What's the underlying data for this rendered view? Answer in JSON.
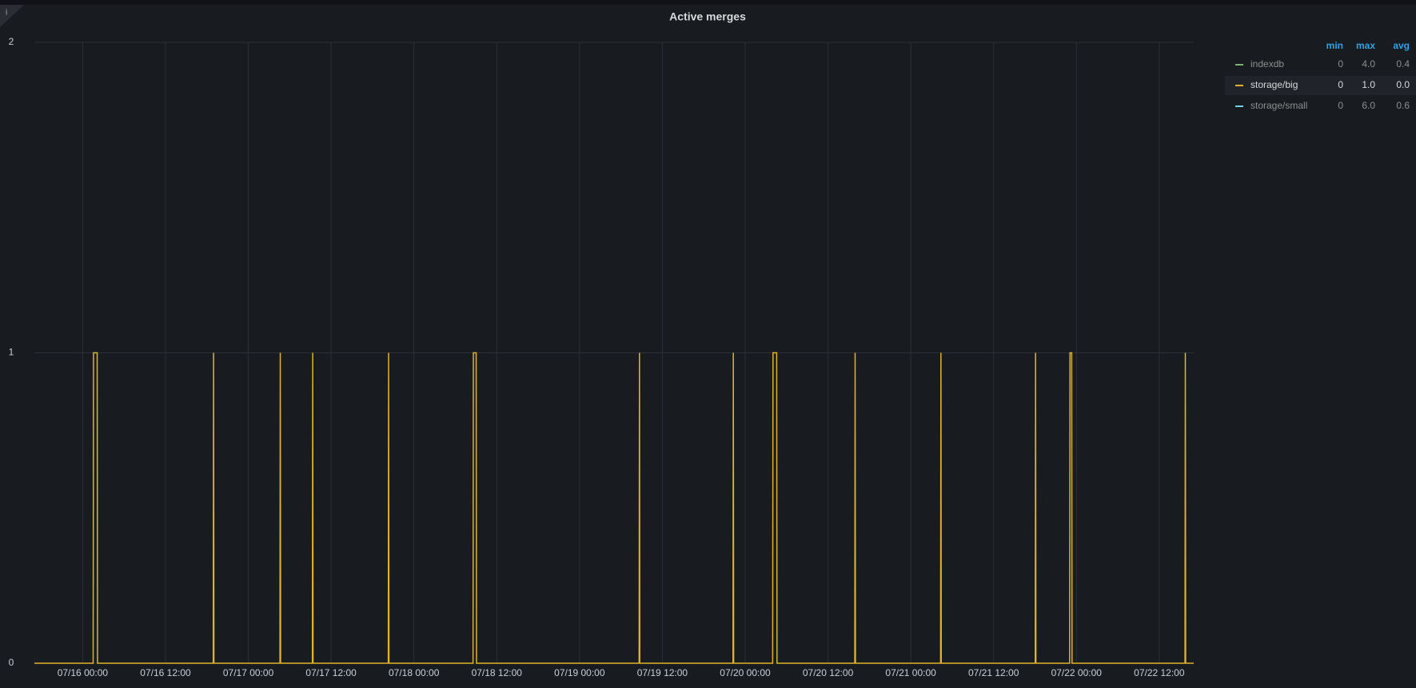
{
  "chart_data": {
    "type": "line",
    "title": "Active merges",
    "info_icon": "i",
    "ylim": [
      0,
      2
    ],
    "yticks": [
      0,
      1,
      2
    ],
    "xlim": [
      "07/15 17:00",
      "07/22 17:00"
    ],
    "xticks": [
      "07/16 00:00",
      "07/16 12:00",
      "07/17 00:00",
      "07/17 12:00",
      "07/18 00:00",
      "07/18 12:00",
      "07/19 00:00",
      "07/19 12:00",
      "07/20 00:00",
      "07/20 12:00",
      "07/21 00:00",
      "07/21 12:00",
      "07/22 00:00",
      "07/22 12:00"
    ],
    "grid": true,
    "legend_columns": [
      "min",
      "max",
      "avg"
    ],
    "series": [
      {
        "name": "indexdb",
        "color": "#7eb26d",
        "visible": false,
        "min": "0",
        "max": "4.0",
        "avg": "0.4"
      },
      {
        "name": "storage/big",
        "color": "#e0b32a",
        "visible": true,
        "min": "0",
        "max": "1.0",
        "avg": "0.0",
        "x": [
          "07/15 17:00",
          "07/16 01:31",
          "07/16 01:34",
          "07/16 02:06",
          "07/16 02:09",
          "07/16 18:55",
          "07/16 18:58",
          "07/16 19:01",
          "07/17 04:35",
          "07/17 04:38",
          "07/17 04:41",
          "07/17 09:17",
          "07/17 09:20",
          "07/17 09:23",
          "07/17 20:17",
          "07/17 20:20",
          "07/17 20:23",
          "07/18 08:34",
          "07/18 08:37",
          "07/18 09:01",
          "07/18 09:04",
          "07/19 08:38",
          "07/19 08:41",
          "07/19 08:44",
          "07/19 22:14",
          "07/19 22:17",
          "07/19 22:20",
          "07/20 03:59",
          "07/20 04:02",
          "07/20 04:34",
          "07/20 04:37",
          "07/20 15:53",
          "07/20 15:56",
          "07/20 15:59",
          "07/21 04:19",
          "07/21 04:22",
          "07/21 04:25",
          "07/21 18:02",
          "07/21 18:05",
          "07/21 18:08",
          "07/21 23:01",
          "07/21 23:04",
          "07/21 23:19",
          "07/21 23:22",
          "07/22 15:44",
          "07/22 15:47",
          "07/22 15:50",
          "07/22 17:00"
        ],
        "values": [
          0,
          0,
          1,
          1,
          0,
          0,
          1,
          0,
          0,
          1,
          0,
          0,
          1,
          0,
          0,
          1,
          0,
          0,
          1,
          1,
          0,
          0,
          1,
          0,
          0,
          1,
          0,
          0,
          1,
          1,
          0,
          0,
          1,
          0,
          0,
          1,
          0,
          0,
          1,
          0,
          0,
          1,
          1,
          0,
          0,
          1,
          0,
          0
        ]
      },
      {
        "name": "storage/small",
        "color": "#6ed0e0",
        "visible": false,
        "min": "0",
        "max": "6.0",
        "avg": "0.6"
      }
    ]
  }
}
